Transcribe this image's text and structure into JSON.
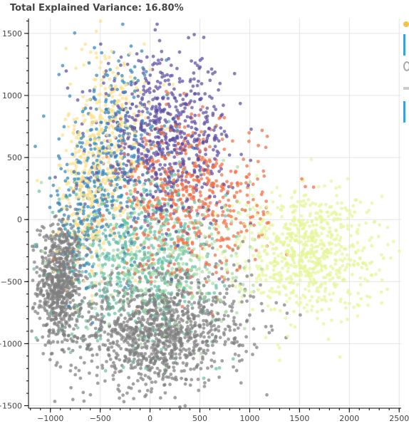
{
  "chart_data": {
    "type": "scatter",
    "title": "Total Explained Variance: 16.80%",
    "xlabel": "",
    "ylabel": "",
    "xlim": [
      -1220,
      2520
    ],
    "ylim": [
      -1520,
      1620
    ],
    "grid": true,
    "x_ticks": [
      -1000,
      -500,
      0,
      500,
      1000,
      1500,
      2000,
      2500
    ],
    "x_tick_labels": [
      "−1000",
      "−500",
      "0",
      "500",
      "1000",
      "1500",
      "2000",
      "2500"
    ],
    "y_ticks": [
      -1500,
      -1000,
      -500,
      0,
      500,
      1000,
      1500
    ],
    "y_tick_labels": [
      "−1500",
      "−1000",
      "−500",
      "0",
      "500",
      "1000",
      "1500"
    ],
    "series": [
      {
        "color": "#808080",
        "clusters": [
          {
            "cx": -900,
            "cy": -500,
            "sx": 110,
            "sy": 250,
            "n": 700
          },
          {
            "cx": 0,
            "cy": -950,
            "sx": 380,
            "sy": 210,
            "n": 750
          },
          {
            "cx": 300,
            "cy": -750,
            "sx": 420,
            "sy": 230,
            "n": 400
          }
        ]
      },
      {
        "color": "#fee08b",
        "clusters": [
          {
            "cx": -400,
            "cy": 600,
            "sx": 220,
            "sy": 420,
            "n": 380
          },
          {
            "cx": -650,
            "cy": 150,
            "sx": 150,
            "sy": 350,
            "n": 170
          }
        ]
      },
      {
        "color": "#3288bd",
        "clusters": [
          {
            "cx": -350,
            "cy": 500,
            "sx": 260,
            "sy": 420,
            "n": 320
          },
          {
            "cx": -700,
            "cy": 100,
            "sx": 140,
            "sy": 300,
            "n": 130
          }
        ]
      },
      {
        "color": "#5e4fa2",
        "clusters": [
          {
            "cx": 150,
            "cy": 650,
            "sx": 330,
            "sy": 330,
            "n": 700
          }
        ]
      },
      {
        "color": "#f46d43",
        "clusters": [
          {
            "cx": 400,
            "cy": 150,
            "sx": 380,
            "sy": 320,
            "n": 550
          }
        ]
      },
      {
        "color": "#66c2a5",
        "clusters": [
          {
            "cx": -100,
            "cy": -300,
            "sx": 400,
            "sy": 330,
            "n": 550
          }
        ]
      },
      {
        "color": "#abdda4",
        "clusters": [
          {
            "cx": 200,
            "cy": -350,
            "sx": 400,
            "sy": 300,
            "n": 300
          }
        ]
      },
      {
        "color": "#e6f598",
        "clusters": [
          {
            "cx": 1550,
            "cy": -250,
            "sx": 360,
            "sy": 250,
            "n": 750
          }
        ]
      }
    ]
  },
  "toolbar": {
    "icons": [
      "bokeh-logo-icon",
      "pan-icon",
      "zoom-icon",
      "wheel-zoom-icon",
      "save-icon",
      "hover-icon"
    ]
  }
}
